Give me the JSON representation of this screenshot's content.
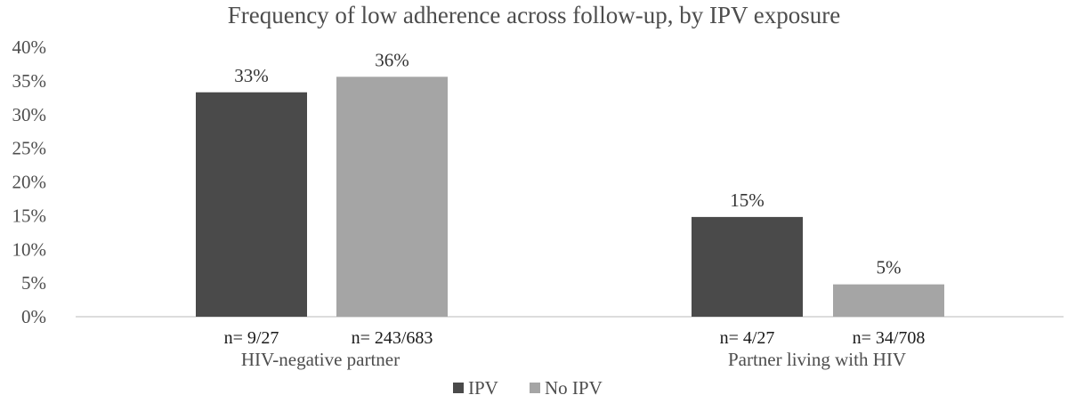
{
  "chart_data": {
    "type": "bar",
    "title": "Frequency of low adherence across follow-up, by IPV exposure",
    "xlabel": "",
    "ylabel": "",
    "ylim": [
      0,
      40
    ],
    "y_ticks": [
      "0%",
      "5%",
      "10%",
      "15%",
      "20%",
      "25%",
      "30%",
      "35%",
      "40%"
    ],
    "y_tick_values": [
      0,
      5,
      10,
      15,
      20,
      25,
      30,
      35,
      40
    ],
    "grid": false,
    "legend_position": "bottom",
    "categories": [
      "HIV-negative partner",
      "Partner living with HIV"
    ],
    "series": [
      {
        "name": "IPV",
        "color": "#4a4a4a",
        "values": [
          33.3,
          14.8
        ],
        "data_labels": [
          "33%",
          "15%"
        ],
        "n_labels": [
          "n= 9/27",
          "n= 4/27"
        ]
      },
      {
        "name": "No IPV",
        "color": "#a5a5a5",
        "values": [
          35.6,
          4.8
        ],
        "data_labels": [
          "36%",
          "5%"
        ],
        "n_labels": [
          "n= 243/683",
          "n= 34/708"
        ]
      }
    ]
  }
}
